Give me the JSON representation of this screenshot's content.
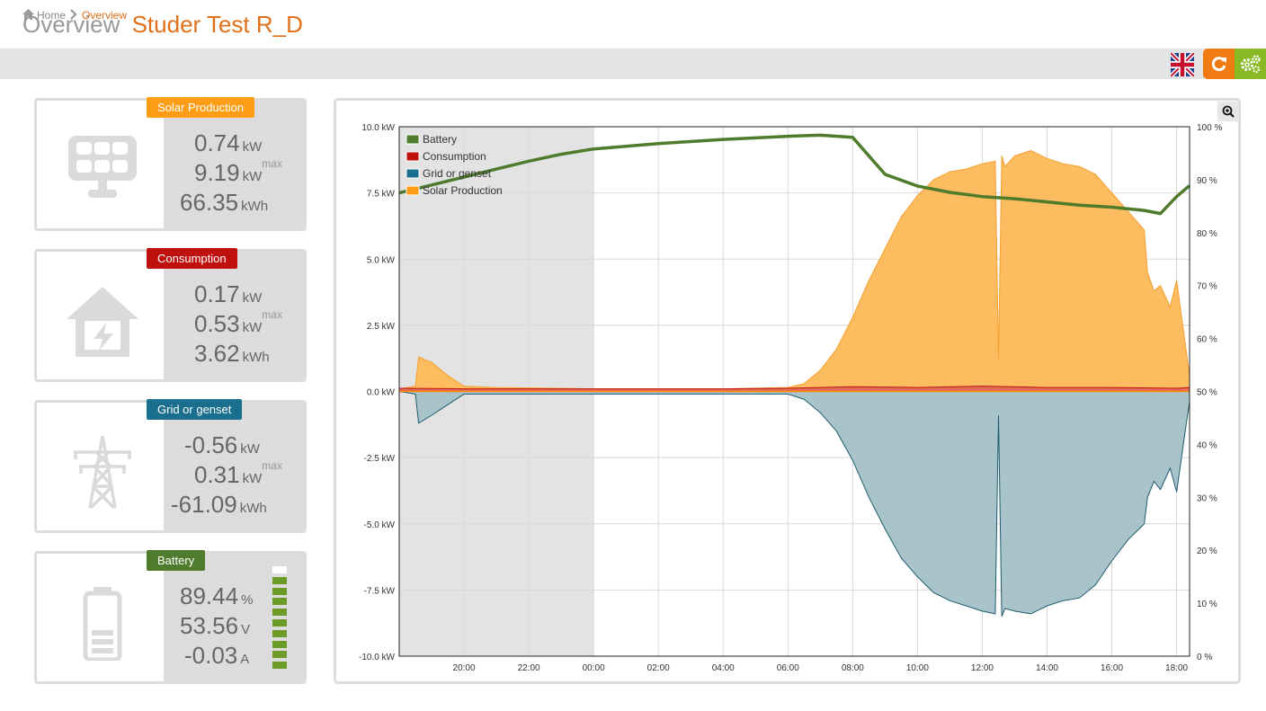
{
  "header": {
    "title": "Overview",
    "site_name": "Studer Test R_D"
  },
  "breadcrumb": {
    "home": "Home",
    "current": "Overview"
  },
  "toolbar": {
    "language_icon": "uk-flag-icon",
    "refresh_icon": "refresh-icon",
    "settings_icon": "gears-icon"
  },
  "colors": {
    "accent": "#e0701a",
    "solar": "#ff9e16",
    "consumption": "#c0100e",
    "grid": "#1a6f8e",
    "battery": "#4e7c2c"
  },
  "cards": {
    "solar": {
      "badge": "Solar Production",
      "icon": "solar-panel-icon",
      "v1": "0.74",
      "u1": "kW",
      "v2": "9.19",
      "u2": "kW",
      "s2": "max",
      "v3": "66.35",
      "u3": "kWh"
    },
    "consumption": {
      "badge": "Consumption",
      "icon": "house-bolt-icon",
      "v1": "0.17",
      "u1": "kW",
      "v2": "0.53",
      "u2": "kW",
      "s2": "max",
      "v3": "3.62",
      "u3": "kWh"
    },
    "grid": {
      "badge": "Grid or genset",
      "icon": "power-pylon-icon",
      "v1": "-0.56",
      "u1": "kW",
      "v2": "0.31",
      "u2": "kW",
      "s2": "max",
      "v3": "-61.09",
      "u3": "kWh"
    },
    "battery": {
      "badge": "Battery",
      "icon": "battery-icon",
      "v1": "89.44",
      "u1": "%",
      "v2": "53.56",
      "u2": "V",
      "v3": "-0.03",
      "u3": "A",
      "level": 0.9
    }
  },
  "chart_data": {
    "type": "area",
    "x_labels": [
      "20:00",
      "22:00",
      "00:00",
      "02:00",
      "04:00",
      "06:00",
      "08:00",
      "10:00",
      "12:00",
      "14:00",
      "16:00",
      "18:00"
    ],
    "y_left_labels": [
      "10.0 kW",
      "7.5 kW",
      "5.0 kW",
      "2.5 kW",
      "0.0 kW",
      "-2.5 kW",
      "-5.0 kW",
      "-7.5 kW",
      "-10.0 kW"
    ],
    "y_right_labels": [
      "100 %",
      "90 %",
      "80 %",
      "70 %",
      "60 %",
      "50 %",
      "40 %",
      "30 %",
      "20 %",
      "10 %",
      "0 %"
    ],
    "ylim_left": [
      -10,
      10
    ],
    "ylim_right": [
      0,
      100
    ],
    "x_range_hours": [
      18.0,
      42.4
    ],
    "night_band_hours": [
      18.0,
      24.0
    ],
    "legend": [
      {
        "name": "Battery",
        "color": "#4e7c2c"
      },
      {
        "name": "Consumption",
        "color": "#c0100e"
      },
      {
        "name": "Grid or genset",
        "color": "#1a6f8e"
      },
      {
        "name": "Solar Production",
        "color": "#ff9e16"
      }
    ],
    "series": [
      {
        "name": "Solar Production",
        "unit": "kW",
        "x": [
          18.0,
          18.5,
          18.6,
          19.0,
          19.5,
          20.0,
          21.0,
          24.0,
          28.0,
          30.0,
          30.5,
          31.0,
          31.5,
          32.0,
          32.5,
          33.0,
          33.5,
          34.0,
          34.5,
          35.0,
          35.5,
          36.0,
          36.4,
          36.5,
          36.6,
          36.7,
          37.0,
          37.5,
          38.0,
          38.5,
          39.0,
          39.5,
          40.0,
          40.5,
          41.0,
          41.1,
          41.3,
          41.5,
          41.8,
          42.0,
          42.3,
          42.4
        ],
        "y": [
          0.1,
          0.2,
          1.3,
          1.1,
          0.6,
          0.2,
          0.15,
          0.1,
          0.1,
          0.15,
          0.3,
          0.8,
          1.6,
          2.8,
          4.2,
          5.4,
          6.6,
          7.4,
          8.0,
          8.3,
          8.4,
          8.6,
          8.7,
          1.2,
          8.9,
          8.5,
          8.9,
          9.1,
          8.8,
          8.6,
          8.5,
          8.2,
          7.5,
          6.8,
          6.1,
          4.5,
          3.8,
          4.0,
          3.2,
          4.2,
          1.5,
          0.6
        ]
      },
      {
        "name": "Consumption",
        "unit": "kW",
        "x": [
          18.0,
          20.0,
          24.0,
          28.0,
          30.0,
          32.0,
          34.0,
          36.0,
          38.0,
          40.0,
          42.0,
          42.4
        ],
        "y": [
          0.12,
          0.1,
          0.1,
          0.1,
          0.12,
          0.18,
          0.15,
          0.2,
          0.15,
          0.15,
          0.12,
          0.15
        ]
      },
      {
        "name": "Grid or genset",
        "unit": "kW",
        "x": [
          18.0,
          18.5,
          18.6,
          19.0,
          19.5,
          20.0,
          21.0,
          24.0,
          28.0,
          30.0,
          30.5,
          31.0,
          31.5,
          32.0,
          32.5,
          33.0,
          33.5,
          34.0,
          34.5,
          35.0,
          35.5,
          36.0,
          36.4,
          36.5,
          36.6,
          36.7,
          37.0,
          37.5,
          38.0,
          38.5,
          39.0,
          39.5,
          40.0,
          40.5,
          41.0,
          41.1,
          41.3,
          41.5,
          41.8,
          42.0,
          42.3,
          42.4
        ],
        "y": [
          0,
          -0.1,
          -1.2,
          -0.9,
          -0.5,
          -0.1,
          -0.1,
          -0.1,
          -0.1,
          -0.1,
          -0.3,
          -0.8,
          -1.5,
          -2.6,
          -4.0,
          -5.2,
          -6.3,
          -7.0,
          -7.6,
          -7.9,
          -8.1,
          -8.3,
          -8.4,
          -0.9,
          -8.5,
          -8.2,
          -8.3,
          -8.4,
          -8.1,
          -7.9,
          -7.8,
          -7.3,
          -6.4,
          -5.6,
          -5.0,
          -4.0,
          -3.4,
          -3.7,
          -2.9,
          -3.8,
          -1.2,
          -0.4
        ]
      },
      {
        "name": "Battery",
        "unit": "%",
        "x": [
          18.0,
          19.0,
          20.0,
          21.0,
          22.0,
          23.0,
          24.0,
          26.0,
          28.0,
          30.0,
          31.0,
          32.0,
          33.0,
          34.0,
          35.0,
          36.0,
          37.0,
          38.0,
          39.0,
          40.0,
          41.0,
          41.5,
          42.0,
          42.4
        ],
        "y": [
          87.5,
          89.0,
          90.5,
          92.0,
          93.5,
          94.8,
          95.8,
          96.8,
          97.6,
          98.2,
          98.4,
          98.0,
          91.0,
          88.8,
          87.6,
          86.8,
          86.4,
          85.8,
          85.2,
          84.8,
          84.2,
          83.6,
          86.8,
          88.9
        ]
      }
    ]
  }
}
